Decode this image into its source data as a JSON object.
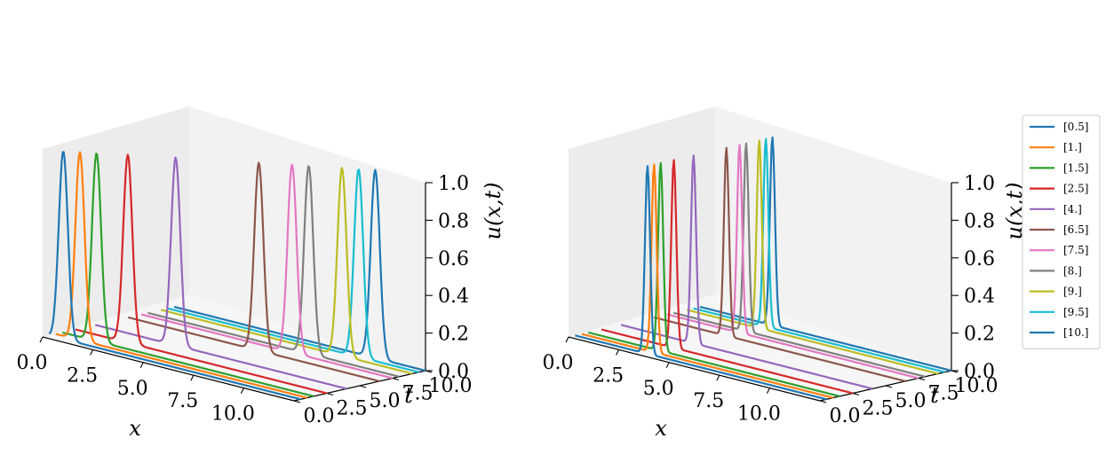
{
  "chart_data": [
    {
      "type": "line",
      "view": "3d",
      "title": "",
      "xlabel": "x",
      "ylabel": "t",
      "zlabel": "u(x,t)",
      "xlim": [
        0,
        12.5
      ],
      "ylim": [
        0,
        10
      ],
      "zlim": [
        0,
        1
      ],
      "x_ticks": [
        "0.0",
        "2.5",
        "5.0",
        "7.5",
        "10.0"
      ],
      "y_ticks": [
        "0.0",
        "2.5",
        "5.0",
        "7.5",
        "10.0"
      ],
      "z_ticks": [
        "0.0",
        "0.2",
        "0.4",
        "0.6",
        "0.8",
        "1.0"
      ],
      "pulse_width": 0.32,
      "series": [
        {
          "name": "[0.5]",
          "t": 0.5,
          "peak_x": 0.7,
          "color": "#1f77b4"
        },
        {
          "name": "[1.]",
          "t": 1.0,
          "peak_x": 1.2,
          "color": "#ff7f0e"
        },
        {
          "name": "[1.5]",
          "t": 1.5,
          "peak_x": 1.7,
          "color": "#2ca02c"
        },
        {
          "name": "[2.5]",
          "t": 2.5,
          "peak_x": 2.6,
          "color": "#d62728"
        },
        {
          "name": "[4.]",
          "t": 4.0,
          "peak_x": 4.0,
          "color": "#9467bd"
        },
        {
          "name": "[6.5]",
          "t": 6.5,
          "peak_x": 6.5,
          "color": "#8c564b"
        },
        {
          "name": "[7.5]",
          "t": 7.5,
          "peak_x": 7.5,
          "color": "#e377c2"
        },
        {
          "name": "[8.]",
          "t": 8.0,
          "peak_x": 8.0,
          "color": "#7f7f7f"
        },
        {
          "name": "[9.]",
          "t": 9.0,
          "peak_x": 9.0,
          "color": "#bcbd22"
        },
        {
          "name": "[9.5]",
          "t": 9.5,
          "peak_x": 9.5,
          "color": "#17becf"
        },
        {
          "name": "[10.]",
          "t": 10.0,
          "peak_x": 10.0,
          "color": "#1f77b4"
        }
      ]
    },
    {
      "type": "line",
      "view": "3d",
      "title": "",
      "xlabel": "x",
      "ylabel": "t",
      "zlabel": "u(x,t)",
      "xlim": [
        0,
        12.5
      ],
      "ylim": [
        0,
        10
      ],
      "zlim": [
        0,
        1
      ],
      "x_ticks": [
        "0.0",
        "2.5",
        "5.0",
        "7.5",
        "10.0"
      ],
      "y_ticks": [
        "0.0",
        "2.5",
        "5.0",
        "7.5",
        "10.0"
      ],
      "z_ticks": [
        "0.0",
        "0.2",
        "0.4",
        "0.6",
        "0.8",
        "1.0"
      ],
      "pulse_width": 0.18,
      "series": [
        {
          "name": "[0.5]",
          "t": 0.5,
          "peak_x": 3.6,
          "color": "#1f77b4"
        },
        {
          "name": "[1.]",
          "t": 1.0,
          "peak_x": 3.6,
          "color": "#ff7f0e"
        },
        {
          "name": "[1.5]",
          "t": 1.5,
          "peak_x": 3.6,
          "color": "#2ca02c"
        },
        {
          "name": "[2.5]",
          "t": 2.5,
          "peak_x": 3.6,
          "color": "#d62728"
        },
        {
          "name": "[4.]",
          "t": 4.0,
          "peak_x": 3.6,
          "color": "#9467bd"
        },
        {
          "name": "[6.5]",
          "t": 6.5,
          "peak_x": 3.6,
          "color": "#8c564b"
        },
        {
          "name": "[7.5]",
          "t": 7.5,
          "peak_x": 3.6,
          "color": "#e377c2"
        },
        {
          "name": "[8.]",
          "t": 8.0,
          "peak_x": 3.6,
          "color": "#7f7f7f"
        },
        {
          "name": "[9.]",
          "t": 9.0,
          "peak_x": 3.6,
          "color": "#bcbd22"
        },
        {
          "name": "[9.5]",
          "t": 9.5,
          "peak_x": 3.6,
          "color": "#17becf"
        },
        {
          "name": "[10.]",
          "t": 10.0,
          "peak_x": 3.6,
          "color": "#1f77b4"
        }
      ]
    }
  ],
  "legend": {
    "location": "right",
    "entries": [
      "[0.5]",
      "[1.]",
      "[1.5]",
      "[2.5]",
      "[4.]",
      "[6.5]",
      "[7.5]",
      "[8.]",
      "[9.]",
      "[9.5]",
      "[10.]"
    ]
  }
}
